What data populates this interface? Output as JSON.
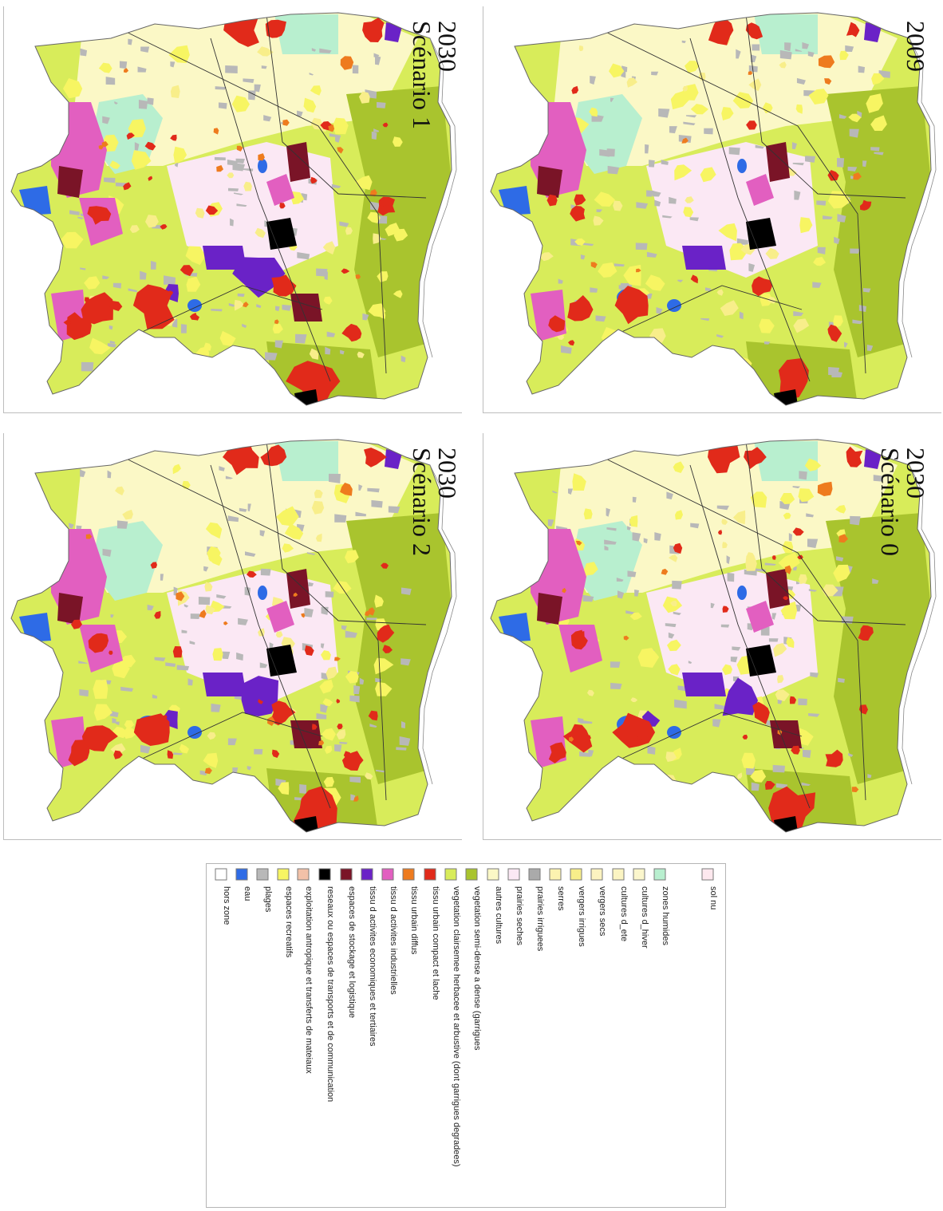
{
  "panels": [
    {
      "id": "p2009",
      "lines": [
        "2009"
      ]
    },
    {
      "id": "s1",
      "lines": [
        "2030",
        "Scénario 1"
      ]
    },
    {
      "id": "s0",
      "lines": [
        "2030",
        "Scénario 0"
      ]
    },
    {
      "id": "s2",
      "lines": [
        "2030",
        "Scénario 2"
      ]
    }
  ],
  "legend": {
    "items": [
      {
        "label": "hors zone",
        "color": "#ffffff"
      },
      {
        "label": "eau",
        "color": "#2e6be6"
      },
      {
        "label": "plages",
        "color": "#b8b8b8"
      },
      {
        "label": "espaces recreatifs",
        "color": "#f7f562"
      },
      {
        "label": "exploitation antropique et transferts de mateiaux",
        "color": "#f2c1a8"
      },
      {
        "label": "reseaux ou espaces de transports et de communication",
        "color": "#000000"
      },
      {
        "label": "espaces de stockage et logistique",
        "color": "#7a1427"
      },
      {
        "label": "tissu d activites economiques et tertiaires",
        "color": "#6a22c7"
      },
      {
        "label": "tissu d activites industrielles",
        "color": "#e25fc0"
      },
      {
        "label": "tissu urbain diffus",
        "color": "#ee7b1e"
      },
      {
        "label": "tissu urbain compact et lache",
        "color": "#e12a1a"
      },
      {
        "label": "vegetation clairsemee herbacee et arbustive (dont garrigues degradees)",
        "color": "#d8ec5a"
      },
      {
        "label": "vegetation semi-dense a dense (garrigues",
        "color": "#a9c42e"
      },
      {
        "label": "autres cultures",
        "color": "#fbf8c6"
      },
      {
        "label": "prairies seches",
        "color": "#fbe8f4"
      },
      {
        "label": "prairies irriguees",
        "color": "#aaaaaa"
      },
      {
        "label": "serres",
        "color": "#fcf3b0"
      },
      {
        "label": "vergers irrigues",
        "color": "#f8ee8a"
      },
      {
        "label": "vergers secs",
        "color": "#fcf3c0"
      },
      {
        "label": "cultures d_ete",
        "color": "#fbf4c2"
      },
      {
        "label": "cultures d_hiver",
        "color": "#fbf6cc"
      },
      {
        "label": "zones humides",
        "color": "#b8efcf"
      },
      {
        "label": "sol nu",
        "color": "#fde8ee"
      }
    ]
  }
}
